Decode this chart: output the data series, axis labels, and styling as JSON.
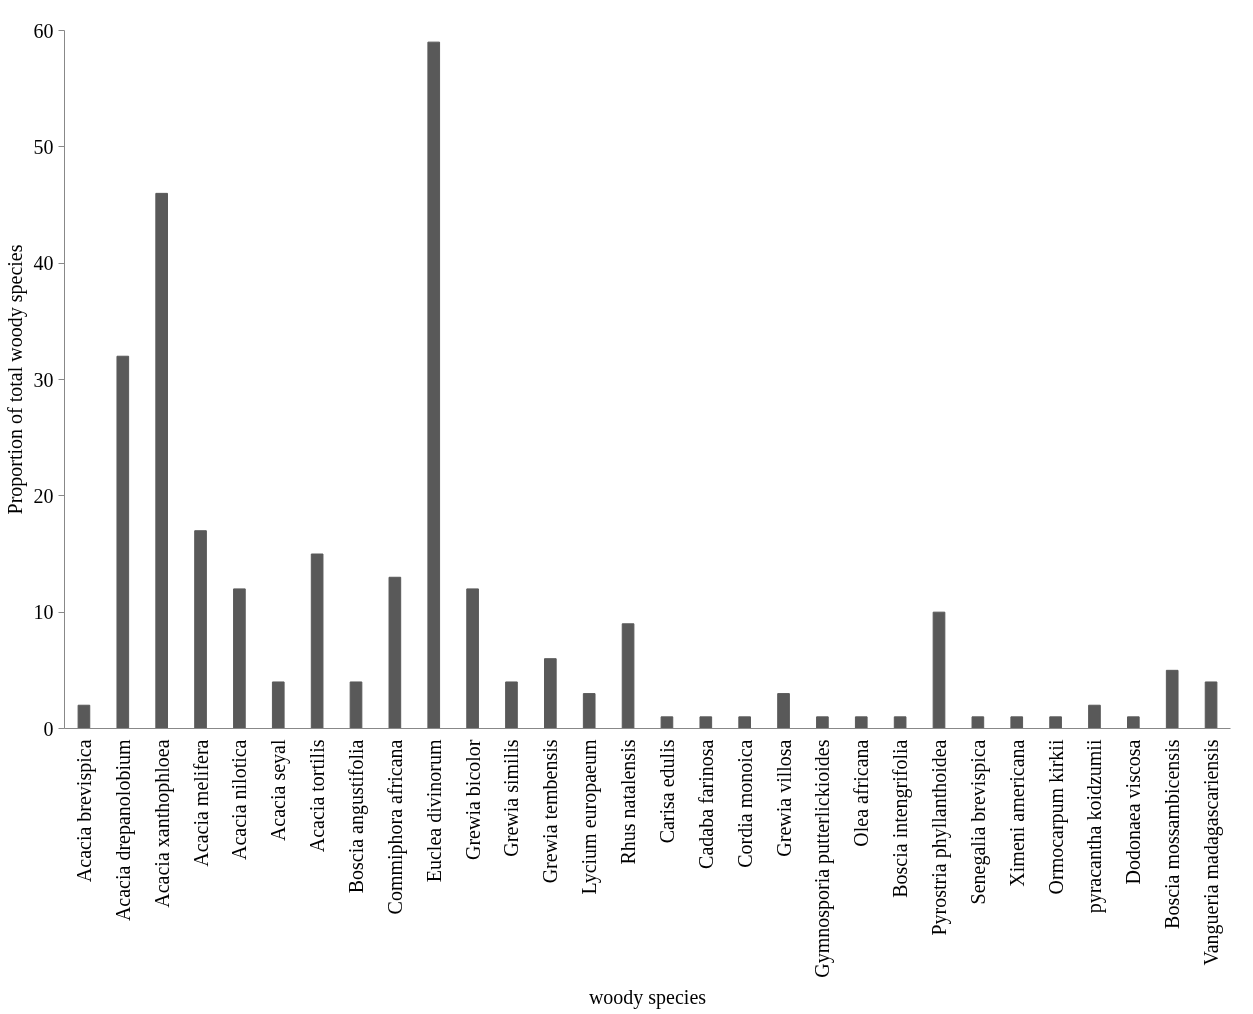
{
  "chart_data": {
    "type": "bar",
    "xlabel": "woody species",
    "ylabel": "Proportion of total woody species",
    "categories": [
      "Acacia brevispica",
      "Acacia drepanolobium",
      "Acacia xanthophloea",
      "Acacia melifera",
      "Acacia nilotica",
      "Acacia seyal",
      "Acacia tortilis",
      "Boscia angustifolia",
      "Commiphora africana",
      "Euclea divinorum",
      "Grewia bicolor",
      "Grewia similis",
      "Grewia tembensis",
      "Lycium europaeum",
      "Rhus natalensis",
      "Carisa edulis",
      "Cadaba farinosa",
      "Cordia monoica",
      "Grewia villosa",
      "Gymnosporia putterlickioides",
      "Olea africana",
      "Boscia intengrifolia",
      "Pyrostria phyllanthoidea",
      "Senegalia brevispica",
      "Ximeni americana",
      "Ormocarpum kirkii",
      "pyracantha koidzumii",
      "Dodonaea viscosa",
      "Boscia mossambicensis",
      "Vangueria madagascariensis"
    ],
    "values": [
      2,
      32,
      46,
      17,
      12,
      4,
      15,
      4,
      13,
      59,
      12,
      4,
      6,
      3,
      9,
      1,
      1,
      1,
      3,
      1,
      1,
      1,
      10,
      1,
      1,
      1,
      2,
      1,
      5,
      4
    ],
    "color": "#595959",
    "ylim": [
      0,
      60
    ],
    "yticks": [
      0,
      10,
      20,
      30,
      40,
      50,
      60
    ],
    "grid": false
  }
}
